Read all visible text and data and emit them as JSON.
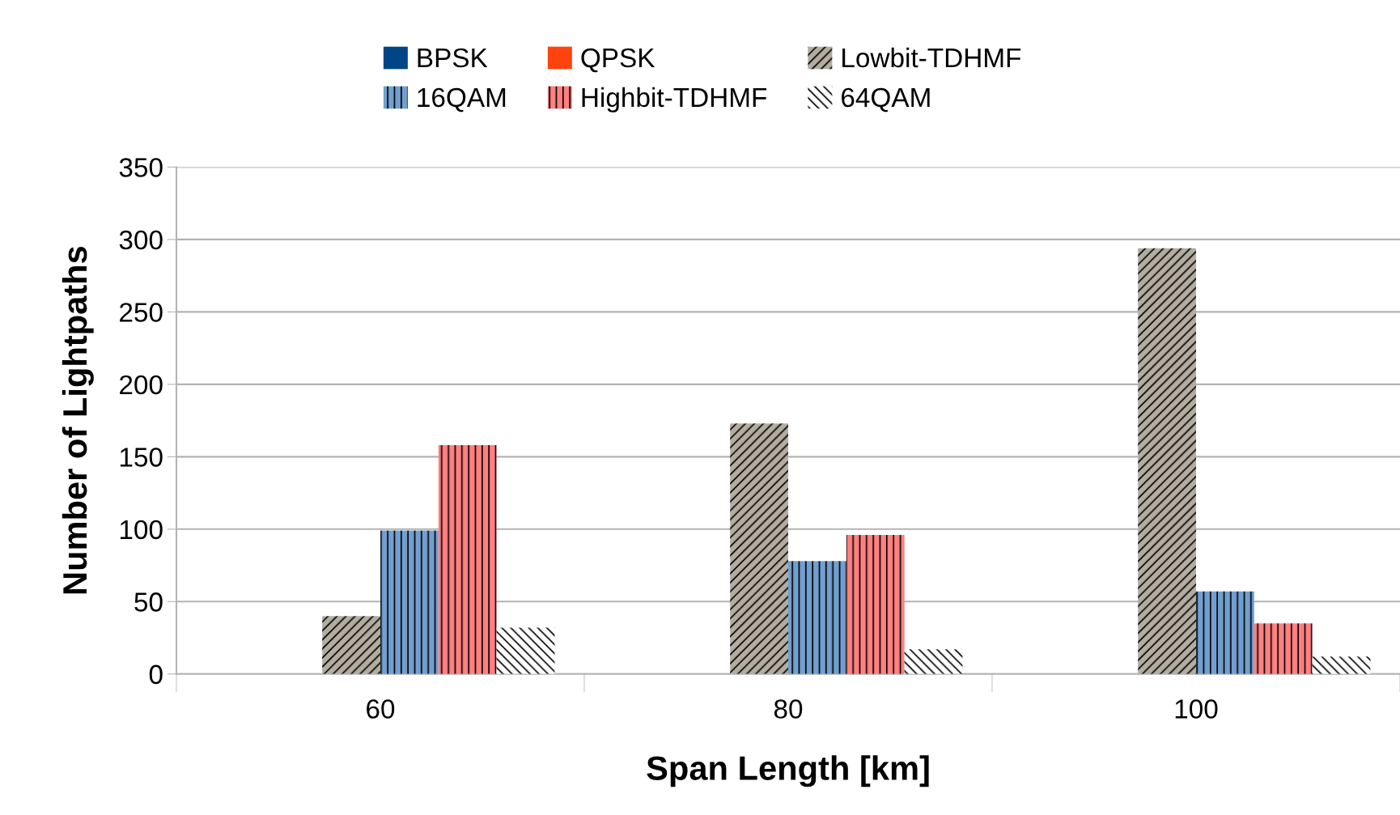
{
  "chart_data": {
    "type": "bar",
    "xlabel": "Span Length [km]",
    "ylabel": "Number of Lightpaths",
    "categories": [
      "60",
      "80",
      "100"
    ],
    "series": [
      {
        "name": "BPSK",
        "color": "#004586",
        "values": [
          0,
          0,
          0
        ]
      },
      {
        "name": "QPSK",
        "color": "#ff420e",
        "values": [
          0,
          0,
          0
        ]
      },
      {
        "name": "Lowbit-TDHMF",
        "color": "#b3ada0",
        "values": [
          40,
          173,
          294
        ]
      },
      {
        "name": "16QAM",
        "color": "#729fcf",
        "values": [
          99,
          78,
          57
        ]
      },
      {
        "name": "Highbit-TDHMF",
        "color": "#ff8080",
        "values": [
          158,
          96,
          35
        ]
      },
      {
        "name": "64QAM",
        "color": "#ffffff",
        "values": [
          32,
          17,
          12
        ]
      }
    ],
    "ylim": [
      0,
      350
    ],
    "yticks": [
      0,
      50,
      100,
      150,
      200,
      250,
      300,
      350
    ],
    "grid": "y",
    "legend": "top"
  }
}
